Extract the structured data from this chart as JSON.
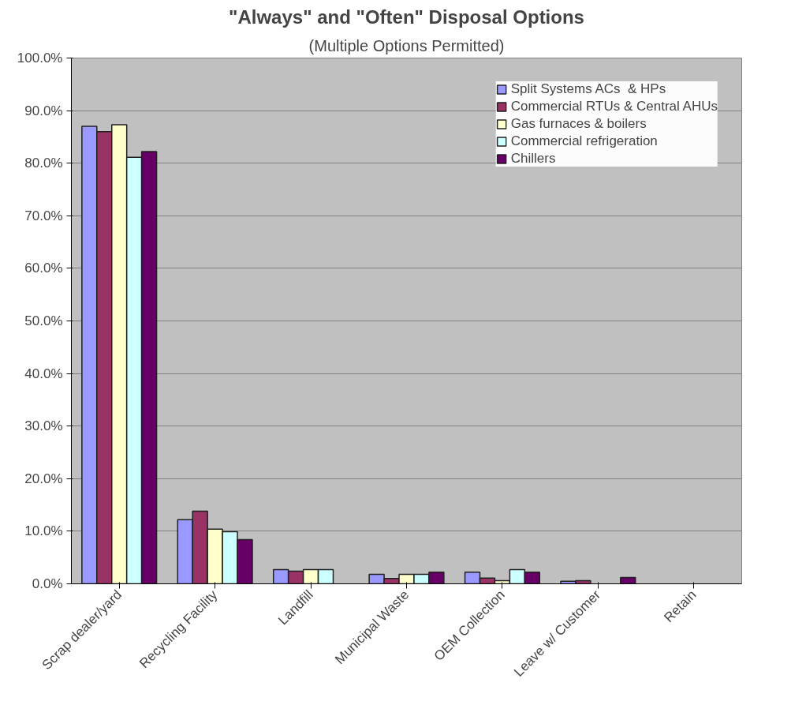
{
  "chart_data": {
    "type": "bar",
    "title": "\"Always\" and \"Often\" Disposal Options",
    "subtitle": "(Multiple Options Permitted)",
    "categories": [
      "Scrap dealer/yard",
      "Recycling Facility",
      "Landfill",
      "Municipal Waste",
      "OEM Collection",
      "Leave w/ Customer",
      "Retain"
    ],
    "series": [
      {
        "name": "Split Systems ACs  & HPs",
        "color": "#9999ff",
        "values": [
          87.0,
          12.2,
          2.7,
          1.8,
          2.2,
          0.5,
          null
        ]
      },
      {
        "name": "Commercial RTUs & Central AHUs",
        "color": "#993366",
        "values": [
          86.0,
          13.8,
          2.4,
          1.0,
          1.1,
          0.6,
          null
        ]
      },
      {
        "name": "Gas furnaces & boilers",
        "color": "#ffffcc",
        "values": [
          87.3,
          10.4,
          2.7,
          1.8,
          0.6,
          null,
          null
        ]
      },
      {
        "name": "Commercial refrigeration",
        "color": "#ccffff",
        "values": [
          81.1,
          9.9,
          2.7,
          1.8,
          2.7,
          null,
          null
        ]
      },
      {
        "name": "Chillers",
        "color": "#660066",
        "values": [
          82.2,
          8.4,
          null,
          2.2,
          2.2,
          1.2,
          null
        ]
      }
    ],
    "ylim": [
      0,
      100
    ],
    "yticks": [
      {
        "value": 0,
        "label": "0.0%"
      },
      {
        "value": 10,
        "label": "10.0%"
      },
      {
        "value": 20,
        "label": "20.0%"
      },
      {
        "value": 30,
        "label": "30.0%"
      },
      {
        "value": 40,
        "label": "40.0%"
      },
      {
        "value": 50,
        "label": "50.0%"
      },
      {
        "value": 60,
        "label": "60.0%"
      },
      {
        "value": 70,
        "label": "70.0%"
      },
      {
        "value": 80,
        "label": "80.0%"
      },
      {
        "value": 90,
        "label": "90.0%"
      },
      {
        "value": 100,
        "label": "100.0%"
      }
    ],
    "grid": "y",
    "legend": "top right"
  }
}
